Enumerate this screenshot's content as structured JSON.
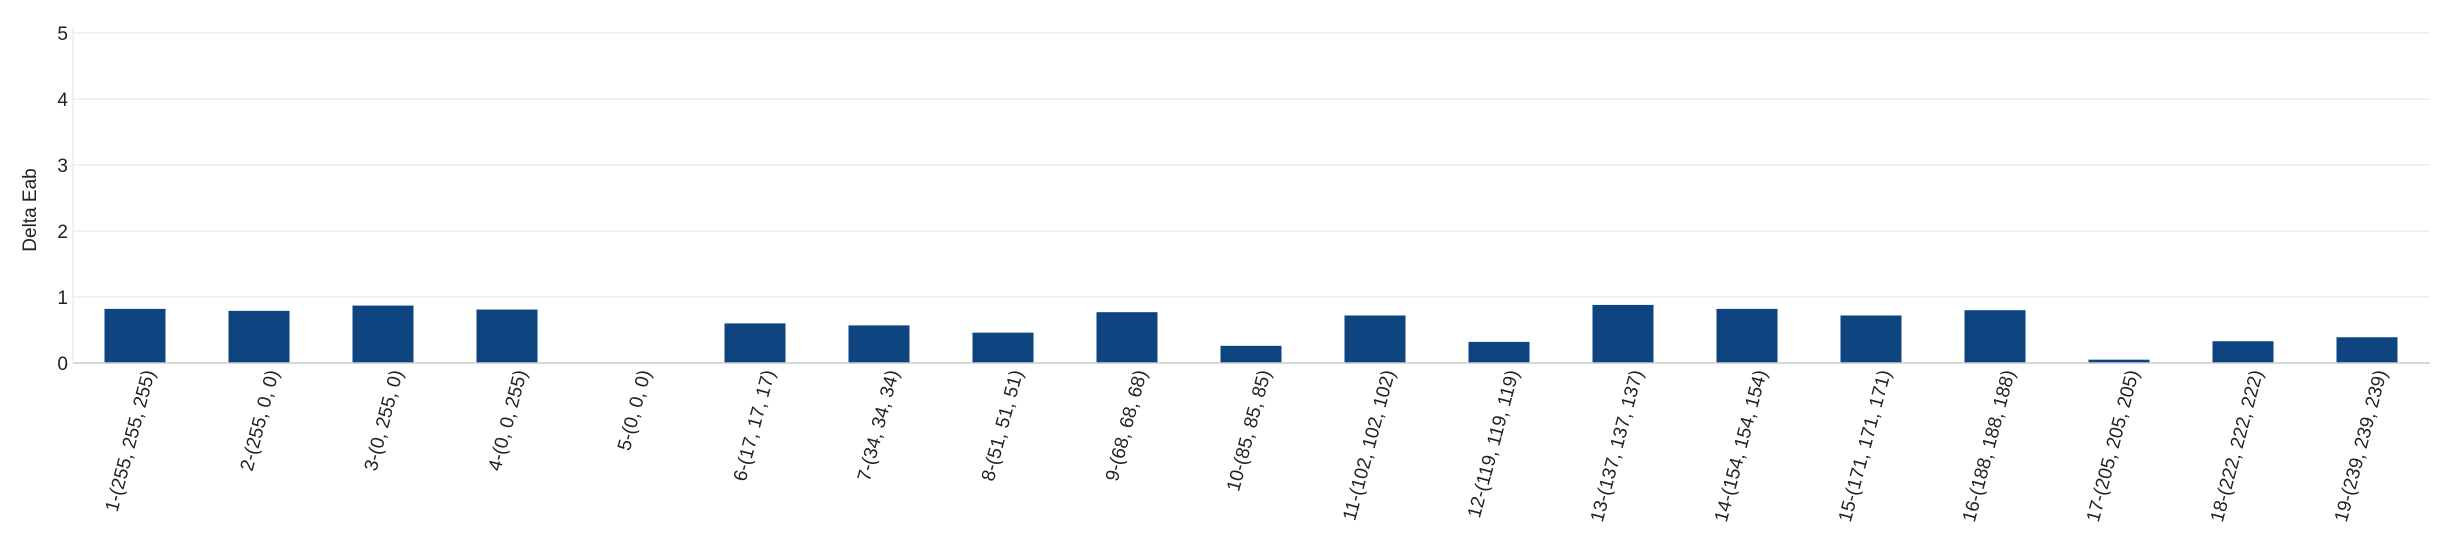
{
  "chart_data": {
    "type": "bar",
    "title": "",
    "xlabel": "",
    "ylabel": "Delta Eab",
    "ylim": [
      0,
      5
    ],
    "yticks": [
      "0",
      "1",
      "2",
      "3",
      "4",
      "5"
    ],
    "grid": true,
    "legend": "none",
    "bar_color": "#0e4580",
    "categories": [
      "1-(255, 255, 255)",
      "2-(255, 0, 0)",
      "3-(0, 255, 0)",
      "4-(0, 0, 255)",
      "5-(0, 0, 0)",
      "6-(17, 17, 17)",
      "7-(34, 34, 34)",
      "8-(51, 51, 51)",
      "9-(68, 68, 68)",
      "10-(85, 85, 85)",
      "11-(102, 102, 102)",
      "12-(119, 119, 119)",
      "13-(137, 137, 137)",
      "14-(154, 154, 154)",
      "15-(171, 171, 171)",
      "16-(188, 188, 188)",
      "17-(205, 205, 205)",
      "18-(222, 222, 222)",
      "19-(239, 239, 239)"
    ],
    "values": [
      0.82,
      0.79,
      0.87,
      0.81,
      0.0,
      0.6,
      0.57,
      0.46,
      0.77,
      0.26,
      0.72,
      0.32,
      0.88,
      0.82,
      0.72,
      0.8,
      0.05,
      0.33,
      0.39
    ]
  }
}
